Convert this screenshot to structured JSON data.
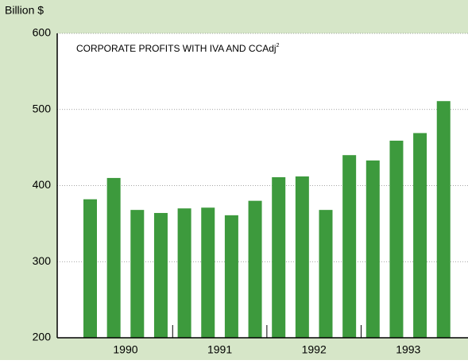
{
  "chart_data": {
    "type": "bar",
    "title": "CORPORATE PROFITS WITH IVA AND CCAdj",
    "title_superscript": "2",
    "y_label": "Billion $",
    "categories": [
      null,
      null,
      null,
      null,
      null,
      null,
      null,
      null,
      null,
      null,
      null,
      null,
      null,
      null,
      null,
      null
    ],
    "x_group_labels": [
      "1990",
      "1991",
      "1992",
      "1993"
    ],
    "values": [
      382,
      410,
      368,
      364,
      370,
      371,
      361,
      380,
      411,
      412,
      368,
      440,
      433,
      459,
      469,
      511
    ],
    "color": "#3d9a3d",
    "ylim": [
      200,
      600
    ],
    "yticks": [
      200,
      300,
      400,
      500,
      600
    ],
    "grid": true
  }
}
